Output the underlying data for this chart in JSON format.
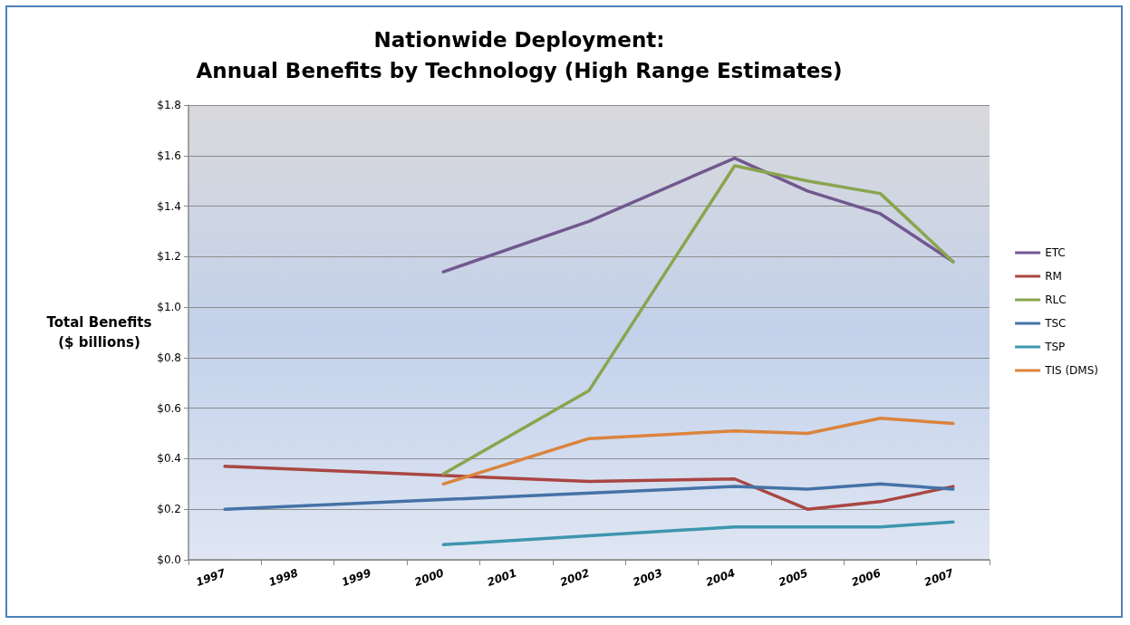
{
  "chart_data": {
    "type": "line",
    "title": "Nationwide Deployment:\nAnnual Benefits by Technology (High Range Estimates)",
    "ylabel": "Total Benefits\n($ billions)",
    "categories": [
      "1997",
      "1998",
      "1999",
      "2000",
      "2001",
      "2002",
      "2003",
      "2004",
      "2005",
      "2006",
      "2007"
    ],
    "series": [
      {
        "name": "ETC",
        "color": "#71588f",
        "values": [
          null,
          null,
          null,
          1.14,
          null,
          1.34,
          null,
          1.59,
          1.46,
          1.37,
          1.18
        ]
      },
      {
        "name": "RM",
        "color": "#aa4643",
        "values": [
          0.37,
          null,
          null,
          null,
          null,
          0.31,
          null,
          0.32,
          0.2,
          0.23,
          0.29
        ]
      },
      {
        "name": "RLC",
        "color": "#89a54e",
        "values": [
          null,
          null,
          null,
          0.34,
          null,
          0.67,
          null,
          1.56,
          1.5,
          1.45,
          1.18
        ]
      },
      {
        "name": "TSC",
        "color": "#4572a7",
        "values": [
          0.2,
          null,
          null,
          null,
          null,
          null,
          null,
          0.29,
          0.28,
          0.3,
          0.28
        ]
      },
      {
        "name": "TSP",
        "color": "#3d96ae",
        "values": [
          null,
          null,
          null,
          0.06,
          null,
          null,
          null,
          0.13,
          0.13,
          0.13,
          0.15
        ]
      },
      {
        "name": "TIS (DMS)",
        "color": "#db843d",
        "values": [
          null,
          null,
          null,
          0.3,
          null,
          0.48,
          null,
          0.51,
          0.5,
          0.56,
          0.54
        ]
      }
    ],
    "ylim": [
      0,
      1.8
    ],
    "yticks": [
      {
        "value": 0,
        "label": "$0.0"
      },
      {
        "value": 0.2,
        "label": "$0.2"
      },
      {
        "value": 0.4,
        "label": "$0.4"
      },
      {
        "value": 0.6,
        "label": "$0.6"
      },
      {
        "value": 0.8,
        "label": "$0.8"
      },
      {
        "value": 1.0,
        "label": "$1.0"
      },
      {
        "value": 1.2,
        "label": "$1.2"
      },
      {
        "value": 1.4,
        "label": "$1.4"
      },
      {
        "value": 1.6,
        "label": "$1.6"
      },
      {
        "value": 1.8,
        "label": "$1.8"
      }
    ],
    "grid": "y",
    "legend": "right",
    "marker": "none",
    "line_style": "solid"
  }
}
